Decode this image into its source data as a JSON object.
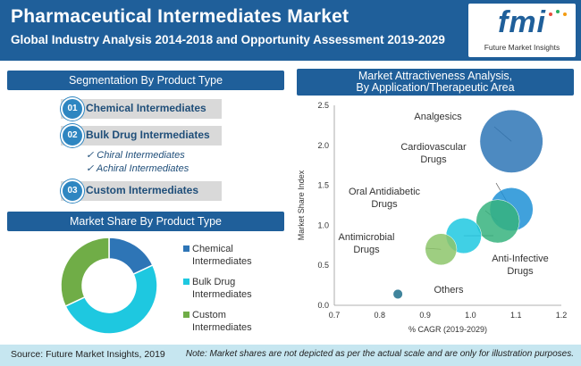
{
  "header": {
    "title": "Pharmaceutical Intermediates Market",
    "subtitle": "Global Industry Analysis 2014-2018  and Opportunity Assessment 2019-2029"
  },
  "logo": {
    "mark": "fmi",
    "text": "Future Market Insights"
  },
  "segmentation": {
    "heading": "Segmentation By Product Type",
    "items": [
      {
        "num": "01",
        "label": "Chemical  Intermediates"
      },
      {
        "num": "02",
        "label": "Bulk Drug  Intermediates"
      },
      {
        "num": "03",
        "label": "Custom  Intermediates"
      }
    ],
    "sub_items": [
      "✓ Chiral Intermediates",
      "✓ Achiral Intermediates"
    ]
  },
  "market_share": {
    "heading": "Market Share By Product Type",
    "legend": [
      {
        "label": "Chemical Intermediates",
        "color": "#2e75b6"
      },
      {
        "label": "Bulk Drug Intermediates",
        "color": "#1ec8e0"
      },
      {
        "label": "Custom Intermediates",
        "color": "#70ad47"
      }
    ]
  },
  "attractiveness": {
    "heading_line1": "Market Attractiveness Analysis,",
    "heading_line2": "By Application/Therapeutic  Area"
  },
  "chart_data": [
    {
      "type": "pie",
      "categories": [
        "Chemical Intermediates",
        "Bulk Drug Intermediates",
        "Custom Intermediates"
      ],
      "values": [
        18,
        50,
        32
      ],
      "colors": [
        "#2e75b6",
        "#1ec8e0",
        "#70ad47"
      ],
      "donut": true,
      "legend": "right"
    },
    {
      "type": "scatter",
      "bubble": true,
      "xlabel": "% CAGR (2019-2029)",
      "ylabel": "Market  Share Index",
      "xlim": [
        0.7,
        1.2
      ],
      "ylim": [
        0,
        2.5
      ],
      "xticks": [
        "0.7",
        "0.8",
        "0.9",
        "1.0",
        "1.1",
        "1.2"
      ],
      "yticks": [
        "0.0",
        "0.5",
        "1.0",
        "1.5",
        "2.0",
        "2.5"
      ],
      "grid": false,
      "points": [
        {
          "label": "Analgesics",
          "x": 1.09,
          "y": 2.05,
          "size": 0.8,
          "color": "#2e75b6"
        },
        {
          "label": "Cardiovascular Drugs",
          "x": 1.09,
          "y": 1.2,
          "size": 0.55,
          "color": "#1e90d6"
        },
        {
          "label": "Oral Antidiabetic Drugs",
          "x": 1.06,
          "y": 1.05,
          "size": 0.55,
          "color": "#36b37e"
        },
        {
          "label": "Anti-Infective Drugs",
          "x": 0.985,
          "y": 0.87,
          "size": 0.45,
          "color": "#1ec8e0"
        },
        {
          "label": "Antimicrobial Drugs",
          "x": 0.935,
          "y": 0.7,
          "size": 0.4,
          "color": "#8dc66b"
        },
        {
          "label": "Others",
          "x": 0.84,
          "y": 0.14,
          "size": 0.12,
          "color": "#1f6f8b"
        }
      ]
    }
  ],
  "footer": {
    "source": "Source: Future Market Insights, 2019",
    "note": "Note: Market shares are not depicted as per the actual scale and are only for illustration purposes."
  }
}
